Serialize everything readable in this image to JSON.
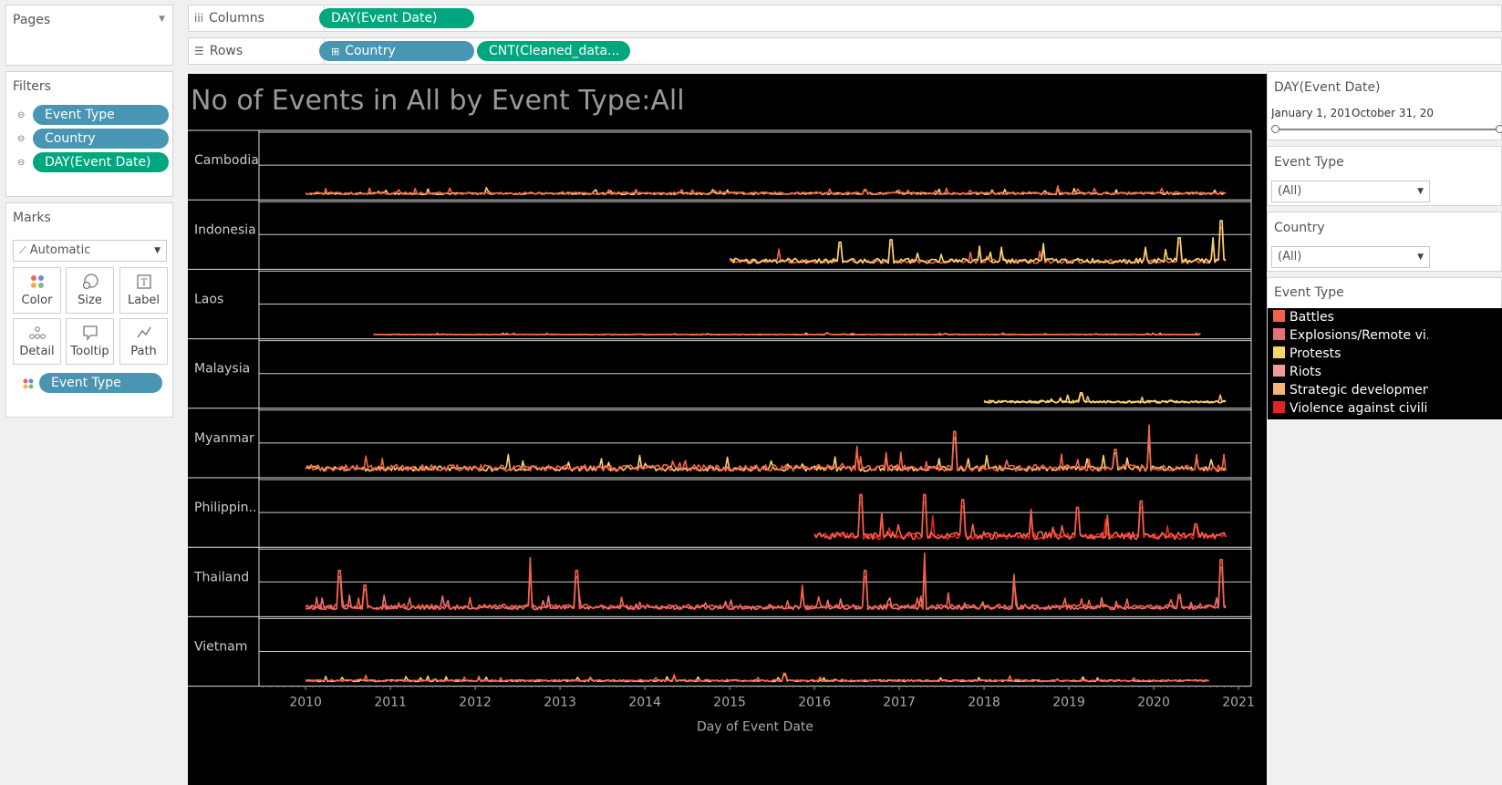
{
  "pages": {
    "title": "Pages"
  },
  "shelves": {
    "columns": {
      "label": "Columns",
      "icon": "columns-icon",
      "pills": [
        "DAY(Event Date)"
      ]
    },
    "rows": {
      "label": "Rows",
      "icon": "rows-icon",
      "pills": [
        "Country",
        "CNT(Cleaned_data..."
      ]
    }
  },
  "filters": {
    "title": "Filters",
    "items": [
      "Event Type",
      "Country",
      "DAY(Event Date)"
    ]
  },
  "marks": {
    "title": "Marks",
    "type": "Automatic",
    "buttons": [
      "Color",
      "Size",
      "Label",
      "Detail",
      "Tooltip",
      "Path"
    ],
    "color_field": "Event Type"
  },
  "right_panel": {
    "date_filter": {
      "title": "DAY(Event Date)",
      "start": "January 1, 201",
      "end": "October 31, 20"
    },
    "event_type_filter": {
      "title": "Event Type",
      "value": "(All)"
    },
    "country_filter": {
      "title": "Country",
      "value": "(All)"
    },
    "legend": {
      "title": "Event Type",
      "items": [
        {
          "label": "Battles",
          "color": "#f4614a"
        },
        {
          "label": "Explosions/Remote vi..",
          "color": "#e8707a"
        },
        {
          "label": "Protests",
          "color": "#f7d56b"
        },
        {
          "label": "Riots",
          "color": "#f29a9a"
        },
        {
          "label": "Strategic developmen..",
          "color": "#f2b47a"
        },
        {
          "label": "Violence against civili..",
          "color": "#e0261e"
        }
      ]
    }
  },
  "chart_data": {
    "type": "line",
    "title": "No of Events in All by Event Type:All",
    "xlabel": "Day of Event Date",
    "x_ticks": [
      "2010",
      "2011",
      "2012",
      "2013",
      "2014",
      "2015",
      "2016",
      "2017",
      "2018",
      "2019",
      "2020",
      "2021"
    ],
    "xlim": [
      "2009-06",
      "2021-02"
    ],
    "grid": true,
    "rows": [
      {
        "country": "Cambodia",
        "start": 2010.0,
        "end": 2020.85,
        "base": 0.04,
        "noise": 0.04,
        "color": "#f4614a",
        "alt": "#f7d56b",
        "spikes": [
          [
            2010.9,
            0.08
          ],
          [
            2013.9,
            0.12
          ],
          [
            2016.6,
            0.12
          ],
          [
            2018.5,
            0.06
          ]
        ]
      },
      {
        "country": "Indonesia",
        "start": 2015.0,
        "end": 2020.85,
        "base": 0.05,
        "noise": 0.08,
        "color": "#f7d56b",
        "alt": "#f4614a",
        "spikes": [
          [
            2016.3,
            0.38
          ],
          [
            2016.9,
            0.42
          ],
          [
            2017.95,
            0.32
          ],
          [
            2018.2,
            0.3
          ],
          [
            2018.7,
            0.36
          ],
          [
            2019.9,
            0.3
          ],
          [
            2020.3,
            0.45
          ],
          [
            2020.7,
            0.45
          ],
          [
            2020.8,
            0.72
          ]
        ]
      },
      {
        "country": "Laos",
        "start": 2010.8,
        "end": 2020.55,
        "base": 0.02,
        "noise": 0.01,
        "color": "#f4614a",
        "alt": "#f2b47a",
        "spikes": [
          [
            2016.15,
            0.05
          ],
          [
            2017.55,
            0.04
          ]
        ]
      },
      {
        "country": "Malaysia",
        "start": 2018.0,
        "end": 2020.85,
        "base": 0.04,
        "noise": 0.04,
        "color": "#f7d56b",
        "alt": "#f2b47a",
        "spikes": [
          [
            2018.9,
            0.12
          ],
          [
            2019.15,
            0.2
          ],
          [
            2020.2,
            0.08
          ]
        ]
      },
      {
        "country": "Myanmar",
        "start": 2010.0,
        "end": 2020.85,
        "base": 0.06,
        "noise": 0.1,
        "color": "#f4614a",
        "alt": "#f7d56b",
        "spikes": [
          [
            2016.5,
            0.45
          ],
          [
            2016.85,
            0.35
          ],
          [
            2017.65,
            0.68
          ],
          [
            2019.55,
            0.4
          ],
          [
            2019.95,
            0.78
          ],
          [
            2020.5,
            0.32
          ]
        ]
      },
      {
        "country": "Philippin..",
        "start": 2016.0,
        "end": 2020.85,
        "base": 0.08,
        "noise": 0.12,
        "color": "#f4614a",
        "alt": "#e0261e",
        "spikes": [
          [
            2016.55,
            0.78
          ],
          [
            2016.8,
            0.5
          ],
          [
            2017.3,
            0.78
          ],
          [
            2017.75,
            0.7
          ],
          [
            2018.55,
            0.55
          ],
          [
            2019.1,
            0.58
          ],
          [
            2019.85,
            0.68
          ],
          [
            2020.5,
            0.32
          ]
        ]
      },
      {
        "country": "Thailand",
        "start": 2010.0,
        "end": 2020.85,
        "base": 0.07,
        "noise": 0.08,
        "color": "#f4614a",
        "alt": "#e8707a",
        "spikes": [
          [
            2010.4,
            0.68
          ],
          [
            2010.7,
            0.45
          ],
          [
            2012.65,
            0.88
          ],
          [
            2013.2,
            0.68
          ],
          [
            2015.85,
            0.45
          ],
          [
            2016.6,
            0.68
          ],
          [
            2017.3,
            0.95
          ],
          [
            2018.35,
            0.62
          ],
          [
            2020.3,
            0.3
          ],
          [
            2020.8,
            0.85
          ]
        ]
      },
      {
        "country": "Vietnam",
        "start": 2010.0,
        "end": 2020.65,
        "base": 0.03,
        "noise": 0.03,
        "color": "#f4614a",
        "alt": "#f7d56b",
        "spikes": [
          [
            2013.35,
            0.1
          ],
          [
            2014.35,
            0.14
          ],
          [
            2015.65,
            0.16
          ],
          [
            2017.1,
            0.06
          ],
          [
            2019.35,
            0.05
          ]
        ]
      }
    ]
  }
}
